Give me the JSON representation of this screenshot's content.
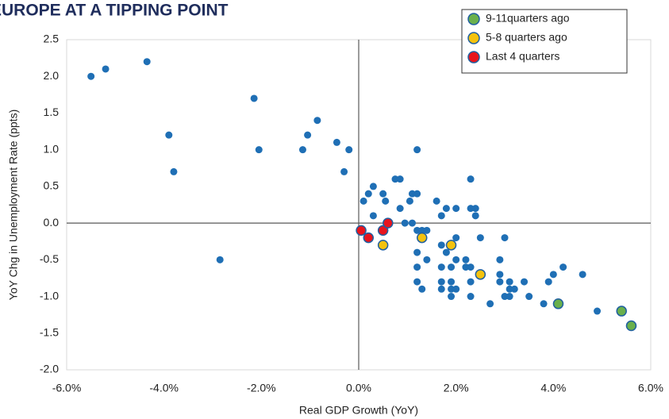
{
  "chart_data": {
    "type": "scatter",
    "title": "EUROPE AT A TIPPING POINT",
    "x_label": "Real GDP Growth (YoY)",
    "y_label": "YoY Chg in Unemployment Rate (ppts)",
    "xlim": [
      -6,
      6
    ],
    "ylim": [
      -2,
      2.5
    ],
    "xticks": [
      {
        "value": -6,
        "label": "-6.0%"
      },
      {
        "value": -4,
        "label": "-4.0%"
      },
      {
        "value": -2,
        "label": "-2.0%"
      },
      {
        "value": 0,
        "label": "0.0%"
      },
      {
        "value": 2,
        "label": "2.0%"
      },
      {
        "value": 4,
        "label": "4.0%"
      },
      {
        "value": 6,
        "label": "6.0%"
      }
    ],
    "yticks": [
      2.5,
      {
        "value": 2,
        "label": "2.0"
      },
      1.5,
      {
        "value": 1,
        "label": "1.0"
      },
      0.5,
      {
        "value": 0,
        "label": "0.0"
      },
      -0.5,
      {
        "value": -1,
        "label": "-1.0"
      },
      -1.5,
      {
        "value": -2,
        "label": "-2.0"
      }
    ],
    "legend": "top-right",
    "series": [
      {
        "color": "#1f6fb5",
        "x": [
          -5.5,
          -5.2,
          -4.35,
          -3.9,
          -3.8,
          -2.85,
          -2.15,
          -2.05,
          -1.15,
          -1.05,
          -0.85,
          -0.45,
          -0.2,
          -0.3,
          0.1,
          0.2,
          0.3,
          0.5,
          0.55,
          0.3,
          0.75,
          0.85,
          0.85,
          0.95,
          1.05,
          1.1,
          1.2,
          1.2,
          1.1,
          1.2,
          1.3,
          1.4,
          1.2,
          1.4,
          1.2,
          1.3,
          1.2,
          1.6,
          1.7,
          1.8,
          2.0,
          2.3,
          2.3,
          2.4,
          2.4,
          1.7,
          1.8,
          1.9,
          2.0,
          2.0,
          1.7,
          1.9,
          2.2,
          2.2,
          1.7,
          1.9,
          1.7,
          1.9,
          2.0,
          1.9,
          2.3,
          2.3,
          2.3,
          2.7,
          2.5,
          3.0,
          2.9,
          2.9,
          2.9,
          3.1,
          3.1,
          3.0,
          3.1,
          3.2,
          3.4,
          3.5,
          3.8,
          3.9,
          4.0,
          4.2,
          4.6,
          4.9
        ],
        "values": [
          2.0,
          2.1,
          2.2,
          1.2,
          0.7,
          -0.5,
          1.7,
          1.0,
          1.0,
          1.2,
          1.4,
          1.1,
          1.0,
          0.7,
          0.3,
          0.4,
          0.5,
          0.4,
          0.3,
          0.1,
          0.6,
          0.6,
          0.2,
          0.0,
          0.3,
          0.4,
          0.4,
          1.0,
          0.0,
          -0.1,
          -0.1,
          -0.1,
          -0.4,
          -0.5,
          -0.6,
          -0.9,
          -0.8,
          0.3,
          0.1,
          0.2,
          0.2,
          0.6,
          0.2,
          0.2,
          0.1,
          -0.3,
          -0.4,
          -0.3,
          -0.2,
          -0.5,
          -0.6,
          -0.6,
          -0.5,
          -0.6,
          -0.8,
          -0.8,
          -0.9,
          -0.9,
          -0.9,
          -1.0,
          -0.6,
          -0.8,
          -1.0,
          -1.1,
          -0.2,
          -0.2,
          -0.5,
          -0.7,
          -0.8,
          -0.8,
          -0.9,
          -1.0,
          -1.0,
          -0.9,
          -0.8,
          -1.0,
          -1.1,
          -0.8,
          -0.7,
          -0.6,
          -0.7,
          -1.2
        ]
      },
      {
        "name": "9-11quarters ago",
        "color": "#6ab04c",
        "x": [
          4.1,
          5.4,
          5.6
        ],
        "values": [
          -1.1,
          -1.2,
          -1.4
        ]
      },
      {
        "name": "5-8 quarters ago",
        "color": "#f4c20d",
        "x": [
          0.5,
          1.3,
          1.9,
          2.5
        ],
        "values": [
          -0.3,
          -0.2,
          -0.3,
          -0.7
        ]
      },
      {
        "name": "Last 4 quarters",
        "color": "#e8141c",
        "x": [
          0.05,
          0.2,
          0.5,
          0.6
        ],
        "values": [
          -0.1,
          -0.2,
          -0.1,
          0.0
        ]
      }
    ]
  }
}
